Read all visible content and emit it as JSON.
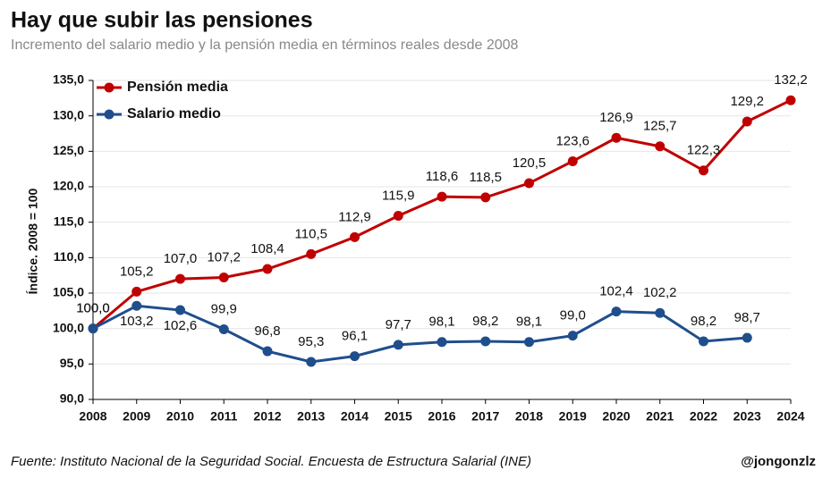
{
  "chart_data": {
    "type": "line",
    "title": "Hay que subir las pensiones",
    "subtitle": "Incremento del salario medio y la pensión media en términos reales desde 2008",
    "y_label": "Índice. 2008 = 100",
    "source": "Fuente: Instituto Nacional de la Seguridad Social. Encuesta de Estructura Salarial (INE)",
    "credit": "@jongonzlz",
    "categories": [
      "2008",
      "2009",
      "2010",
      "2011",
      "2012",
      "2013",
      "2014",
      "2015",
      "2016",
      "2017",
      "2018",
      "2019",
      "2020",
      "2021",
      "2022",
      "2023",
      "2024"
    ],
    "series": [
      {
        "name": "Pensión media",
        "color": "#c00000",
        "values": [
          100.0,
          105.2,
          107.0,
          107.2,
          108.4,
          110.5,
          112.9,
          115.9,
          118.6,
          118.5,
          120.5,
          123.6,
          126.9,
          125.7,
          122.3,
          129.2,
          132.2
        ],
        "value_labels": [
          "100,0",
          "105,2",
          "107,0",
          "107,2",
          "108,4",
          "110,5",
          "112,9",
          "115,9",
          "118,6",
          "118,5",
          "120,5",
          "123,6",
          "126,9",
          "125,7",
          "122,3",
          "129,2",
          "132,2"
        ]
      },
      {
        "name": "Salario medio",
        "color": "#1f4e8c",
        "values": [
          100.0,
          103.2,
          102.6,
          99.9,
          96.8,
          95.3,
          96.1,
          97.7,
          98.1,
          98.2,
          98.1,
          99.0,
          102.4,
          102.2,
          98.2,
          98.7,
          null
        ],
        "value_labels": [
          "100,0",
          "103,2",
          "102,6",
          "99,9",
          "96,8",
          "95,3",
          "96,1",
          "97,7",
          "98,1",
          "98,2",
          "98,1",
          "99,0",
          "102,4",
          "102,2",
          "98,2",
          "98,7",
          null
        ]
      }
    ],
    "ylim": [
      90,
      135
    ],
    "yticks": [
      {
        "value": 90,
        "label": "90,0"
      },
      {
        "value": 95,
        "label": "95,0"
      },
      {
        "value": 100,
        "label": "100,0"
      },
      {
        "value": 105,
        "label": "105,0"
      },
      {
        "value": 110,
        "label": "110,0"
      },
      {
        "value": 115,
        "label": "115,0"
      },
      {
        "value": 120,
        "label": "120,0"
      },
      {
        "value": 125,
        "label": "125,0"
      },
      {
        "value": 130,
        "label": "130,0"
      },
      {
        "value": 135,
        "label": "135,0"
      }
    ],
    "grid": true,
    "legend": "top-left"
  }
}
